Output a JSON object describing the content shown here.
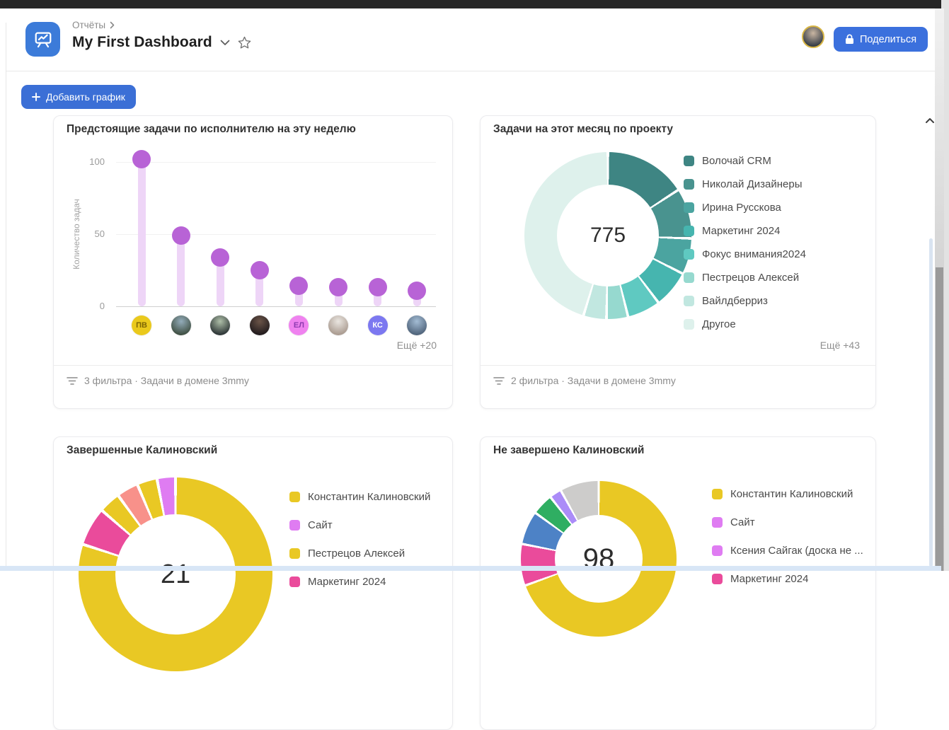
{
  "window": {
    "top_bar_color": "#262626",
    "accent_blue": "#3b70dd"
  },
  "header": {
    "breadcrumb": "Отчёты",
    "title": "My First Dashboard",
    "share_label": "Поделиться"
  },
  "toolbar": {
    "add_chart_label": "Добавить график"
  },
  "chart_data": [
    {
      "type": "lollipop",
      "title": "Предстоящие задачи по исполнителю на эту неделю",
      "ylabel": "Количество задач",
      "ylim": [
        0,
        110
      ],
      "grid": true,
      "yticks": [
        {
          "label": "100",
          "value": 100
        },
        {
          "label": "50",
          "value": 50
        },
        {
          "label": "0",
          "value": 0
        }
      ],
      "values": [
        102,
        49,
        34,
        25,
        14,
        13,
        13,
        11
      ],
      "point_color": "#b863d6",
      "stem_color": "#eed5f7",
      "avatars": [
        {
          "kind": "initials",
          "text": "ПВ",
          "bg": "#eac91c",
          "fg": "#7d6504"
        },
        {
          "kind": "photo",
          "c1": "#93acba",
          "c2": "#3f4f42"
        },
        {
          "kind": "photo",
          "c1": "#aebfa8",
          "c2": "#2c3435"
        },
        {
          "kind": "photo",
          "c1": "#6b5448",
          "c2": "#211b1d"
        },
        {
          "kind": "initials",
          "text": "ЕЛ",
          "bg": "#ef82ef",
          "fg": "#8d3bb0"
        },
        {
          "kind": "photo",
          "c1": "#eae6e1",
          "c2": "#a99a8f"
        },
        {
          "kind": "initials",
          "text": "КС",
          "bg": "#7c78f0",
          "fg": "#ffffff"
        },
        {
          "kind": "photo",
          "c1": "#a3bcd4",
          "c2": "#4f637a"
        }
      ],
      "more_label": "Ещё +20",
      "footer": "3 фильтра · Задачи в домене 3mmy"
    },
    {
      "type": "donut",
      "title": "Задачи на этот месяц по проекту",
      "center_label": "775",
      "slices": [
        {
          "label": "Волочай CRM",
          "color": "#3e8583",
          "start": 0,
          "end": 57
        },
        {
          "label": "Николай Дизайнеры",
          "color": "#49938f",
          "start": 57,
          "end": 92
        },
        {
          "label": "Ирина Русскова",
          "color": "#4ba4a0",
          "start": 92,
          "end": 117
        },
        {
          "label": "Маркетинг 2024",
          "color": "#46b5af",
          "start": 117,
          "end": 143
        },
        {
          "label": "Фокус внимания2024",
          "color": "#5fc9c1",
          "start": 143,
          "end": 166
        },
        {
          "label": "Пестрецов Алексей",
          "color": "#96d9cf",
          "start": 166,
          "end": 181
        },
        {
          "label": "Вайлдберриз",
          "color": "#c1e7e0",
          "start": 181,
          "end": 197
        },
        {
          "label": "Другое",
          "color": "#def1ec",
          "start": 197,
          "end": 360
        }
      ],
      "legend": [
        {
          "label": "Волочай CRM",
          "color": "#3e8583"
        },
        {
          "label": "Николай Дизайнеры",
          "color": "#49938f"
        },
        {
          "label": "Ирина Русскова",
          "color": "#4ba4a0"
        },
        {
          "label": "Маркетинг 2024",
          "color": "#46b5af"
        },
        {
          "label": "Фокус внимания2024",
          "color": "#5fc9c1"
        },
        {
          "label": "Пестрецов Алексей",
          "color": "#96d9cf"
        },
        {
          "label": "Вайлдберриз",
          "color": "#c1e7e0"
        },
        {
          "label": "Другое",
          "color": "#def1ec"
        }
      ],
      "more_label": "Ещё +43",
      "footer": "2 фильтра · Задачи в домене 3mmy"
    },
    {
      "type": "donut",
      "title": "Завершенные Калиновский",
      "center_label": "21",
      "slices": [
        {
          "label": "Константин Калиновский",
          "color": "#e9c824",
          "start": 0,
          "end": 288
        },
        {
          "label": "Маркетинг 2024",
          "color": "#ea4b9b",
          "start": 288,
          "end": 311
        },
        {
          "label": "",
          "color": "#e9c824",
          "start": 311,
          "end": 324
        },
        {
          "label": "",
          "color": "#f8918a",
          "start": 324,
          "end": 337
        },
        {
          "label": "",
          "color": "#e9c824",
          "start": 337,
          "end": 349
        },
        {
          "label": "Сайт",
          "color": "#df7cf2",
          "start": 349,
          "end": 360
        }
      ],
      "legend": [
        {
          "label": "Константин Калиновский",
          "color": "#e9c824"
        },
        {
          "label": "Сайт",
          "color": "#df7cf2"
        },
        {
          "label": "Пестрецов Алексей",
          "color": "#e9c824"
        },
        {
          "label": "Маркетинг 2024",
          "color": "#ea4b9b"
        }
      ]
    },
    {
      "type": "donut",
      "title": "Не завершено Калиновский",
      "center_label": "98",
      "slices": [
        {
          "label": "Константин Калиновский",
          "color": "#e9c824",
          "start": 0,
          "end": 250
        },
        {
          "label": "Маркетинг 2024",
          "color": "#ea4b9b",
          "start": 250,
          "end": 281
        },
        {
          "label": "",
          "color": "#4d82c6",
          "start": 281,
          "end": 306
        },
        {
          "label": "",
          "color": "#2fae62",
          "start": 306,
          "end": 322
        },
        {
          "label": "Ксения Сайгак",
          "color": "#ab8cf8",
          "start": 322,
          "end": 331
        },
        {
          "label": "",
          "color": "#cdcccb",
          "start": 331,
          "end": 360
        }
      ],
      "legend": [
        {
          "label": "Константин Калиновский",
          "color": "#e9c824"
        },
        {
          "label": "Сайт",
          "color": "#df7cf2"
        },
        {
          "label": "Ксения Сайгак (доска не ...",
          "color": "#df7cf2"
        },
        {
          "label": "Маркетинг 2024",
          "color": "#ea4b9b"
        }
      ]
    }
  ]
}
